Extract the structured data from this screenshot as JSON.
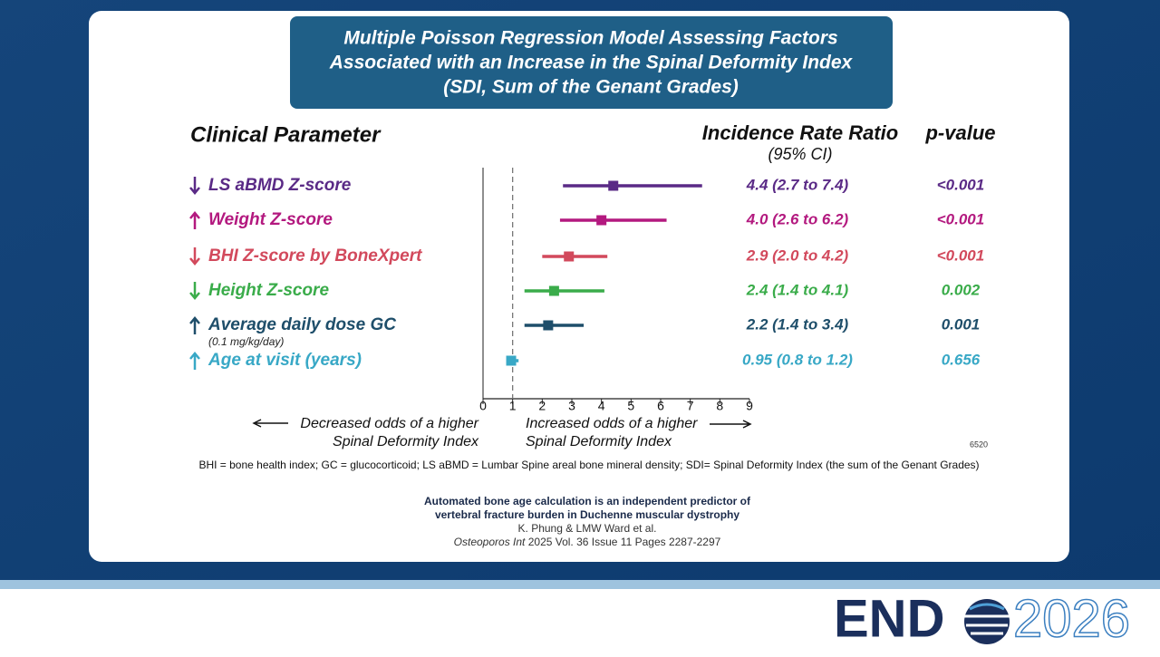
{
  "chart_data": {
    "type": "forest",
    "title": [
      "Multiple Poisson Regression Model Assessing Factors",
      "Associated with an Increase in the Spinal Deformity Index",
      "(SDI, Sum of the Genant Grades)"
    ],
    "column_headers": {
      "parameter": "Clinical Parameter",
      "ratio": "Incidence Rate Ratio",
      "ratio_sub": "(95% CI)",
      "p": "p-value"
    },
    "categories": [
      "LS aBMD Z-score",
      "Weight Z-score",
      "BHI Z-score by BoneXpert",
      "Height Z-score",
      "Average daily dose GC",
      "Age at visit (years)"
    ],
    "sublabels": [
      null,
      null,
      null,
      null,
      "(0.1 mg/kg/day)",
      null
    ],
    "directions": [
      "down",
      "up",
      "down",
      "down",
      "up",
      "up"
    ],
    "colors": [
      "#5a2a86",
      "#b3197f",
      "#d2495c",
      "#3aac4a",
      "#1e4e6a",
      "#38a8c6"
    ],
    "values": [
      4.4,
      4.0,
      2.9,
      2.4,
      2.2,
      0.95
    ],
    "lower": [
      2.7,
      2.6,
      2.0,
      1.4,
      1.4,
      0.8
    ],
    "upper": [
      7.4,
      6.2,
      4.2,
      4.1,
      3.4,
      1.2
    ],
    "value_labels": [
      "4.4 (2.7 to 7.4)",
      "4.0 (2.6 to 6.2)",
      "2.9 (2.0 to 4.2)",
      "2.4 (1.4 to 4.1)",
      "2.2 (1.4 to 3.4)",
      "0.95 (0.8 to 1.2)"
    ],
    "p_values": [
      "<0.001",
      "<0.001",
      "<0.001",
      "0.002",
      "0.001",
      "0.656"
    ],
    "reference": 1,
    "xlim": [
      0,
      9
    ],
    "xticks": [
      0,
      1,
      2,
      3,
      4,
      5,
      6,
      7,
      8,
      9
    ],
    "left_annotation": [
      "Decreased odds of a higher",
      "Spinal Deformity Index"
    ],
    "right_annotation": [
      "Increased odds of a higher",
      "Spinal Deformity Index"
    ]
  },
  "slide_code": "6520",
  "footnote": "BHI = bone health index;  GC = glucocorticoid;  LS aBMD = Lumbar Spine areal bone mineral density;  SDI= Spinal Deformity Index (the sum of the Genant Grades)",
  "citation": {
    "title": [
      "Automated bone age calculation is an independent predictor of",
      "vertebral fracture burden in Duchenne muscular dystrophy"
    ],
    "authors": "K. Phung & LMW Ward et al.",
    "journal": "Osteoporos Int",
    "details": "2025 Vol. 36 Issue 11 Pages 2287-2297"
  },
  "logo": {
    "left": "END",
    "right": "2026"
  }
}
